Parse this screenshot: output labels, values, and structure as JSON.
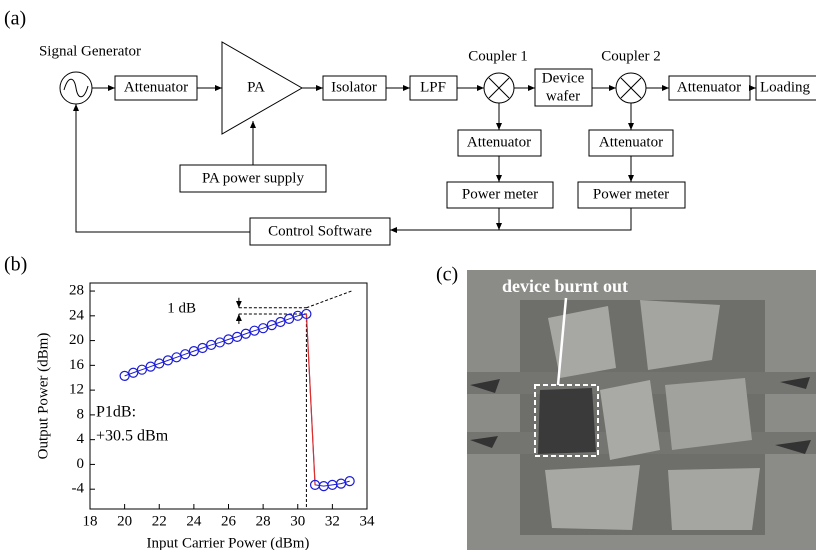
{
  "panel_labels": [
    "(a)",
    "(b)",
    "(c)"
  ],
  "diagram": {
    "signal_generator": "Signal Generator",
    "attenuator_1": "Attenuator",
    "pa": "PA",
    "pa_supply": "PA power supply",
    "isolator": "Isolator",
    "lpf": "LPF",
    "coupler_1": "Coupler 1",
    "device_wafer": [
      "Device",
      "wafer"
    ],
    "coupler_2": "Coupler 2",
    "attenuator_2": "Attenuator",
    "loading": "Loading",
    "attenuator_c1": "Attenuator",
    "power_meter_c1": "Power meter",
    "attenuator_c2": "Attenuator",
    "power_meter_c2": "Power meter",
    "control_software": "Control Software"
  },
  "chart_data": {
    "type": "line",
    "x_label": "Input Carrier Power (dBm)",
    "y_label": "Output Power (dBm)",
    "x": [
      20,
      20.5,
      21,
      21.5,
      22,
      22.5,
      23,
      23.5,
      24,
      24.5,
      25,
      25.5,
      26,
      26.5,
      27,
      27.5,
      28,
      28.5,
      29,
      29.5,
      30,
      30.5,
      31,
      31.5,
      32,
      32.5,
      33
    ],
    "series": [
      {
        "color": "#1c1cd6",
        "values": [
          14.3,
          14.8,
          15.3,
          15.8,
          16.3,
          16.8,
          17.3,
          17.8,
          18.3,
          18.8,
          19.3,
          19.7,
          20.2,
          20.6,
          21.1,
          21.6,
          22.0,
          22.5,
          23.0,
          23.5,
          24.0,
          24.3,
          -3.3,
          -3.5,
          -3.3,
          -3.1,
          -2.7
        ]
      }
    ],
    "drop_color": "#e0302a",
    "xlim": [
      18,
      34
    ],
    "xticks": [
      18,
      20,
      22,
      24,
      26,
      28,
      30,
      32,
      34
    ],
    "ylim": [
      -7.2,
      29.3
    ],
    "yticks": [
      -4,
      0,
      4,
      8,
      12,
      16,
      20,
      24,
      28
    ],
    "guides": {
      "ideal_x": [
        30.5,
        33.2
      ],
      "ideal_y": [
        25.3,
        28.1
      ],
      "levels": [
        25.3,
        24.3
      ],
      "level_x_start": 26.6,
      "p1db_x": 30.5
    },
    "compression_label": "1 dB",
    "p1db_label": [
      "P1dB:",
      "+30.5 dBm"
    ]
  },
  "micrograph": {
    "annotation": "device burnt out"
  }
}
